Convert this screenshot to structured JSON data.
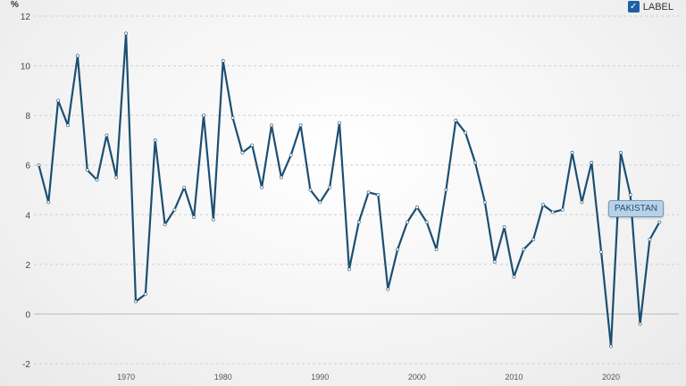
{
  "legend": {
    "label": "LABEL",
    "checked": true,
    "check_glyph": "✓",
    "color": "#1f5fa8"
  },
  "series_tag": "PAKISTAN",
  "chart_data": {
    "type": "line",
    "ylabel": "%",
    "ylim": [
      -2,
      12
    ],
    "yticks": [
      -2,
      0,
      2,
      4,
      6,
      8,
      10,
      12
    ],
    "xlim": [
      1960.5,
      2027
    ],
    "xticks": [
      1970,
      1980,
      1990,
      2000,
      2010,
      2020
    ],
    "grid": "horizontal dashed",
    "line_color": "#1b4f72",
    "series": [
      {
        "name": "PAKISTAN",
        "x": [
          1961,
          1962,
          1963,
          1964,
          1965,
          1966,
          1967,
          1968,
          1969,
          1970,
          1971,
          1972,
          1973,
          1974,
          1975,
          1976,
          1977,
          1978,
          1979,
          1980,
          1981,
          1982,
          1983,
          1984,
          1985,
          1986,
          1987,
          1988,
          1989,
          1990,
          1991,
          1992,
          1993,
          1994,
          1995,
          1996,
          1997,
          1998,
          1999,
          2000,
          2001,
          2002,
          2003,
          2004,
          2005,
          2006,
          2007,
          2008,
          2009,
          2010,
          2011,
          2012,
          2013,
          2014,
          2015,
          2016,
          2017,
          2018,
          2019,
          2020,
          2021,
          2022,
          2023,
          2024,
          2025
        ],
        "values": [
          6.0,
          4.5,
          8.6,
          7.6,
          10.4,
          5.8,
          5.4,
          7.2,
          5.5,
          11.3,
          0.5,
          0.8,
          7.0,
          3.6,
          4.2,
          5.1,
          3.9,
          8.0,
          3.8,
          10.2,
          7.9,
          6.5,
          6.8,
          5.1,
          7.6,
          5.5,
          6.4,
          7.6,
          5.0,
          4.5,
          5.1,
          7.7,
          1.8,
          3.7,
          4.9,
          4.8,
          1.0,
          2.6,
          3.7,
          4.3,
          3.7,
          2.6,
          5.0,
          7.8,
          7.3,
          6.1,
          4.5,
          2.1,
          3.5,
          1.5,
          2.6,
          3.0,
          4.4,
          4.1,
          4.2,
          6.5,
          4.5,
          6.1,
          2.5,
          -1.3,
          6.5,
          4.8,
          -0.4,
          3.0,
          3.7
        ]
      }
    ]
  }
}
